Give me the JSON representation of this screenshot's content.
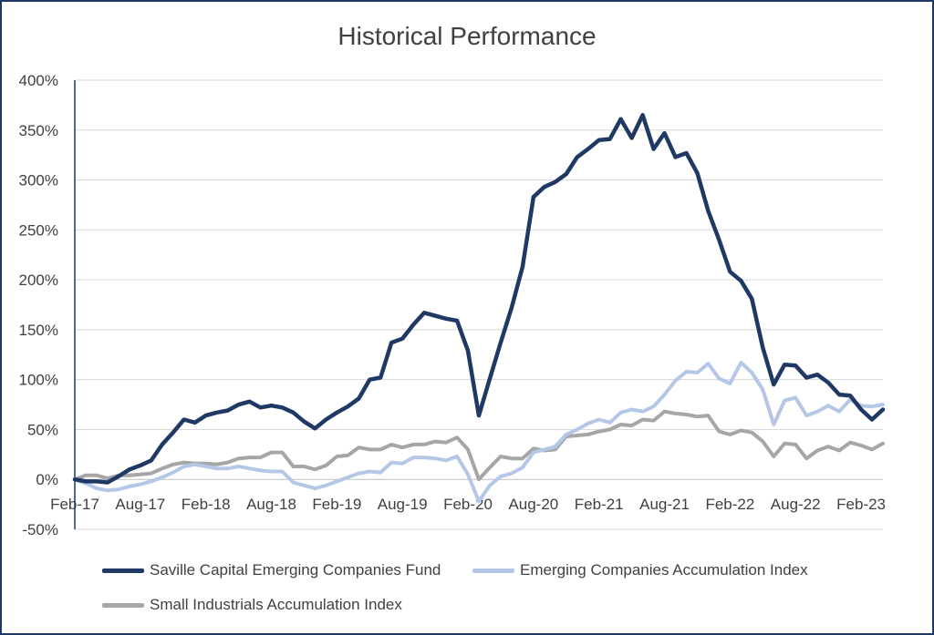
{
  "chart_data": {
    "type": "line",
    "title": "Historical Performance",
    "xlabel": "",
    "ylabel": "",
    "ylim": [
      -50,
      400
    ],
    "y_ticks": [
      -50,
      0,
      50,
      100,
      150,
      200,
      250,
      300,
      350,
      400
    ],
    "y_tick_labels": [
      "-50%",
      "0%",
      "50%",
      "100%",
      "150%",
      "200%",
      "250%",
      "300%",
      "350%",
      "400%"
    ],
    "x_tick_labels": [
      "Feb-17",
      "Aug-17",
      "Feb-18",
      "Aug-18",
      "Feb-19",
      "Aug-19",
      "Feb-20",
      "Aug-20",
      "Feb-21",
      "Aug-21",
      "Feb-22",
      "Aug-22",
      "Feb-23"
    ],
    "x_tick_month_index": [
      0,
      6,
      12,
      18,
      24,
      30,
      36,
      42,
      48,
      54,
      60,
      66,
      72
    ],
    "x_start": "Feb-17",
    "x_end": "Apr-23",
    "grid": "horizontal",
    "legend_position": "bottom",
    "series": [
      {
        "name": "Saville Capital Emerging Companies Fund",
        "color": "#1f3864",
        "values": [
          0,
          -2,
          -2,
          -3,
          3,
          10,
          14,
          19,
          35,
          47,
          60,
          57,
          64,
          67,
          69,
          75,
          78,
          72,
          74,
          72,
          67,
          58,
          51,
          60,
          67,
          73,
          81,
          100,
          102,
          137,
          141,
          155,
          167,
          164,
          161,
          159,
          129,
          64,
          101,
          137,
          172,
          213,
          283,
          293,
          298,
          306,
          323,
          331,
          340,
          341,
          361,
          342,
          365,
          331,
          347,
          323,
          327,
          307,
          269,
          240,
          208,
          199,
          181,
          132,
          95,
          115,
          114,
          102,
          105,
          97,
          85,
          84,
          70,
          60,
          70
        ]
      },
      {
        "name": "Emerging Companies Accumulation Index",
        "color": "#b4c7e7",
        "values": [
          0,
          -4,
          -9,
          -11,
          -10,
          -7,
          -5,
          -2,
          2,
          7,
          13,
          15,
          13,
          11,
          11,
          13,
          11,
          9,
          8,
          8,
          -3,
          -6,
          -9,
          -6,
          -2,
          2,
          6,
          8,
          7,
          17,
          16,
          22,
          22,
          21,
          19,
          23,
          5,
          -22,
          -6,
          3,
          6,
          12,
          27,
          30,
          33,
          45,
          50,
          56,
          60,
          57,
          67,
          70,
          68,
          73,
          85,
          99,
          108,
          107,
          116,
          101,
          96,
          117,
          107,
          90,
          55,
          79,
          82,
          64,
          68,
          74,
          68,
          80,
          74,
          73,
          75
        ]
      },
      {
        "name": "Small Industrials Accumulation Index",
        "color": "#a6a6a6",
        "values": [
          0,
          4,
          4,
          1,
          4,
          4,
          5,
          6,
          11,
          15,
          17,
          16,
          16,
          15,
          17,
          21,
          22,
          22,
          27,
          27,
          13,
          13,
          10,
          14,
          23,
          24,
          32,
          30,
          30,
          35,
          32,
          35,
          35,
          38,
          37,
          42,
          30,
          0,
          12,
          23,
          21,
          21,
          31,
          29,
          30,
          43,
          44,
          45,
          48,
          50,
          55,
          54,
          60,
          59,
          68,
          66,
          65,
          63,
          64,
          48,
          45,
          49,
          47,
          38,
          23,
          36,
          35,
          21,
          29,
          33,
          29,
          37,
          34,
          30,
          36
        ]
      }
    ]
  }
}
